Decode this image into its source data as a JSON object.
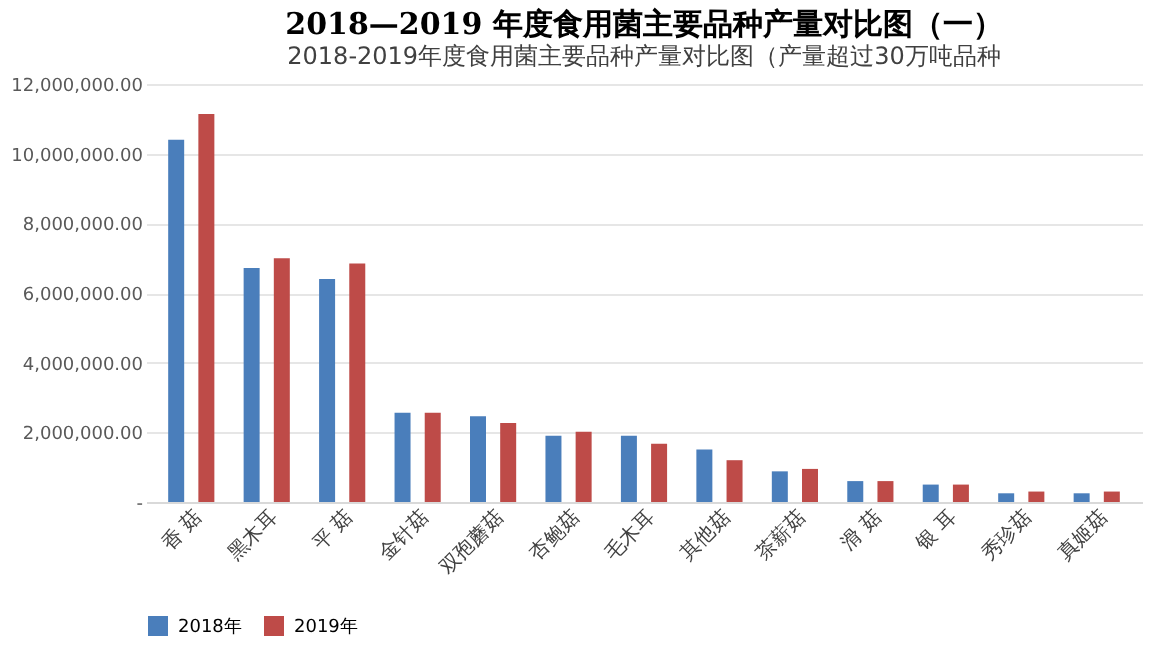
{
  "chart_data": {
    "type": "bar",
    "title": "2018—2019 年度食用菌主要品种产量对比图（一）",
    "subtitle": "2018-2019年度食用菌主要品种产量对比图（产量超过30万吨品种",
    "categories": [
      "香 菇",
      "黑木耳",
      "平 菇",
      "金针菇",
      "双孢蘑菇",
      "杏鲍菇",
      "毛木耳",
      "其他菇",
      "茶薪菇",
      "滑 菇",
      "银 耳",
      "秀珍菇",
      "真姬菇"
    ],
    "series": [
      {
        "name": "2018年",
        "color": "#4a7ebb",
        "values": [
          10400000,
          6720000,
          6400000,
          2560000,
          2460000,
          1900000,
          1900000,
          1510000,
          880000,
          600000,
          500000,
          250000,
          250000
        ]
      },
      {
        "name": "2019年",
        "color": "#be4b48",
        "values": [
          11140000,
          7000000,
          6850000,
          2560000,
          2270000,
          2020000,
          1670000,
          1200000,
          950000,
          600000,
          500000,
          300000,
          300000
        ]
      }
    ],
    "ylim": [
      0,
      12000000
    ],
    "yticks": [
      {
        "value": 0,
        "label": "-"
      },
      {
        "value": 2000000,
        "label": "2,000,000.00"
      },
      {
        "value": 4000000,
        "label": "4,000,000.00"
      },
      {
        "value": 6000000,
        "label": "6,000,000.00"
      },
      {
        "value": 8000000,
        "label": "8,000,000.00"
      },
      {
        "value": 10000000,
        "label": "10,000,000.00"
      },
      {
        "value": 12000000,
        "label": "12,000,000.00"
      }
    ],
    "grid": "y",
    "legend": "bottom"
  }
}
